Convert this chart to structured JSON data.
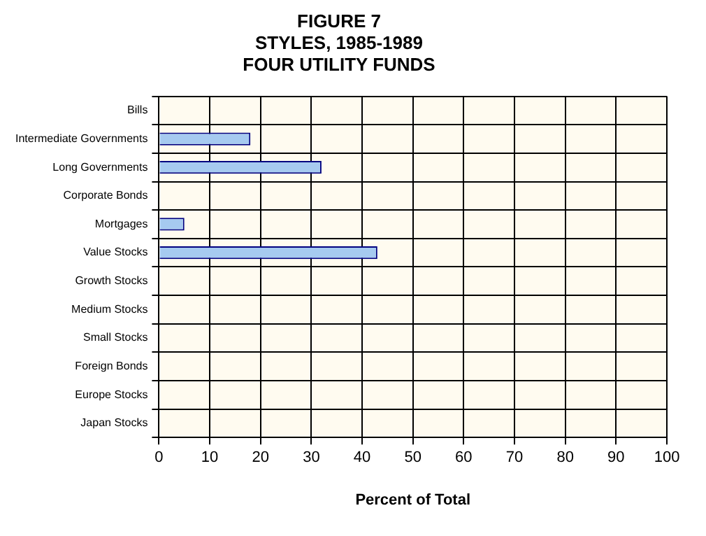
{
  "chart_data": {
    "type": "bar",
    "orientation": "horizontal",
    "title": "FIGURE 7\nSTYLES, 1985-1989\nFOUR UTILITY FUNDS",
    "xlabel": "Percent of Total",
    "categories": [
      "Bills",
      "Intermediate Governments",
      "Long Governments",
      "Corporate Bonds",
      "Mortgages",
      "Value Stocks",
      "Growth Stocks",
      "Medium Stocks",
      "Small Stocks",
      "Foreign Bonds",
      "Europe Stocks",
      "Japan Stocks"
    ],
    "values": [
      0,
      18,
      32,
      0,
      5,
      43,
      0,
      0,
      0,
      0,
      0,
      0
    ],
    "color": "#a6caf0",
    "xlim": [
      0,
      100
    ],
    "xticks": [
      0,
      10,
      20,
      30,
      40,
      50,
      60,
      70,
      80,
      90,
      100
    ],
    "grid": true
  }
}
